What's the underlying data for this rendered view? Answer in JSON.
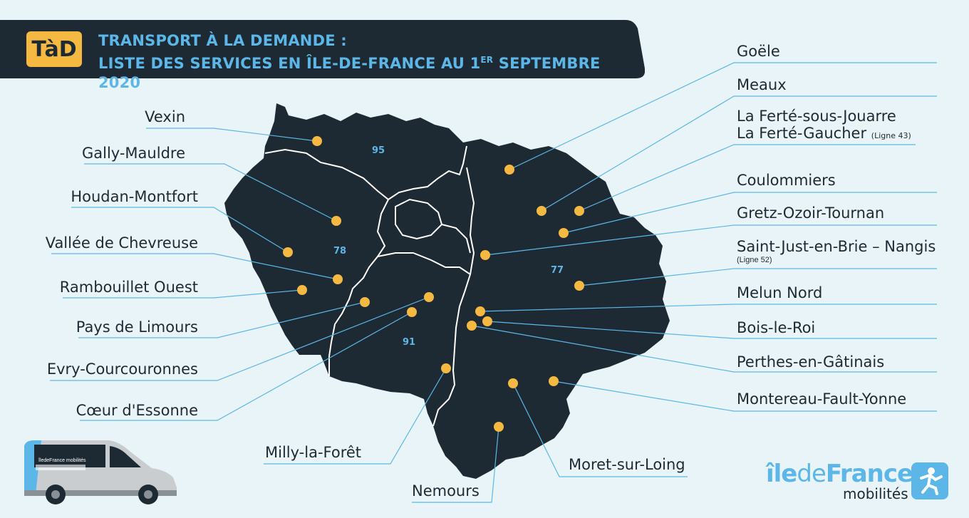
{
  "header": {
    "badge": "TàD",
    "title_line1": "TRANSPORT À LA DEMANDE :",
    "title_line2_a": "LISTE DES SERVICES EN ÎLE-DE-FRANCE AU 1",
    "title_line2_sup": "ER",
    "title_line2_b": " SEPTEMBRE 2020"
  },
  "departments": {
    "d95": "95",
    "d78": "78",
    "d91": "91",
    "d77": "77"
  },
  "services_left": {
    "vexin": "Vexin",
    "gally": "Gally-Mauldre",
    "houdan": "Houdan-Montfort",
    "chevreuse": "Vallée de Chevreuse",
    "rambouillet": "Rambouillet Ouest",
    "limours": "Pays de Limours",
    "evry": "Evry-Courcouronnes",
    "essonne": "Cœur d'Essonne",
    "milly": "Milly-la-Forêt",
    "nemours": "Nemours"
  },
  "services_right": {
    "goele": "Goële",
    "meaux": "Meaux",
    "ferte_jouarre": "La Ferté-sous-Jouarre",
    "ferte_gaucher": "La Ferté-Gaucher",
    "ferte_gaucher_note": "(Ligne 43)",
    "coulommiers": "Coulommiers",
    "gretz": "Gretz-Ozoir-Tournan",
    "saint_just": "Saint-Just-en-Brie – Nangis",
    "saint_just_note": "(Ligne 52)",
    "melun": "Melun Nord",
    "bois_le_roi": "Bois-le-Roi",
    "perthes": "Perthes-en-Gâtinais",
    "montereau": "Montereau-Fault-Yonne",
    "moret": "Moret-sur-Loing"
  },
  "logo": {
    "name_a": "île",
    "name_b": "de",
    "name_c": "France",
    "sub": "mobilités",
    "bus_livery": "îledeFrance mobilités"
  },
  "colors": {
    "background": "#e8f4f8",
    "map": "#1e2a33",
    "accent": "#5cb7e8",
    "marker": "#f5b840"
  }
}
